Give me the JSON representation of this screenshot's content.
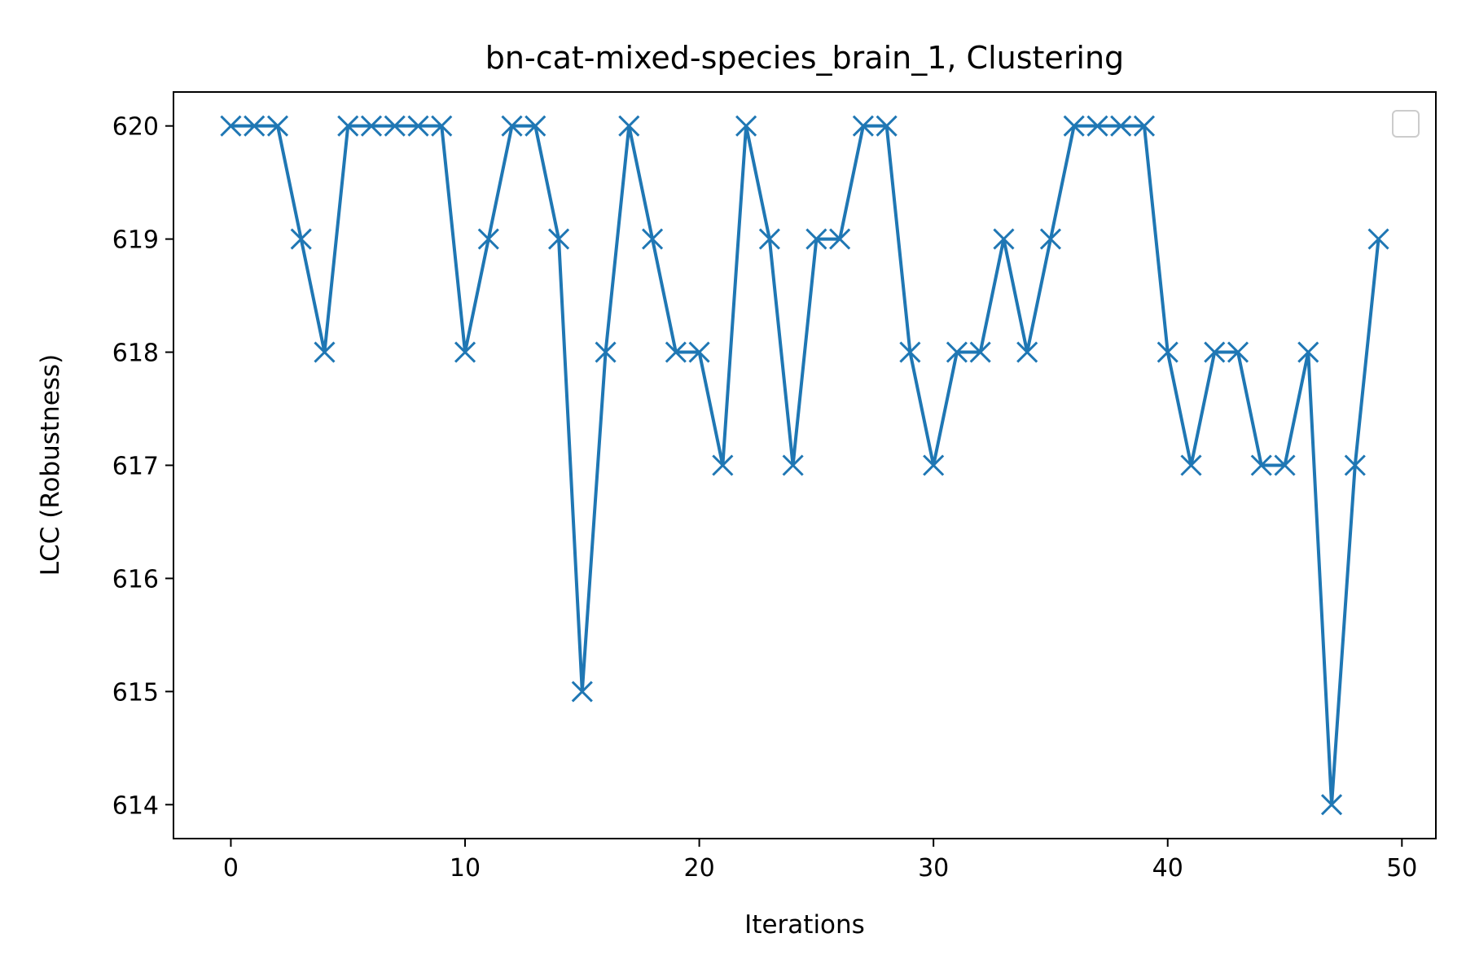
{
  "chart_data": {
    "type": "line",
    "title": "bn-cat-mixed-species_brain_1, Clustering",
    "xlabel": "Iterations",
    "ylabel": "LCC (Robustness)",
    "xlim": [
      -2.45,
      51.45
    ],
    "ylim": [
      613.7,
      620.3
    ],
    "xticks": [
      0,
      10,
      20,
      30,
      40,
      50
    ],
    "yticks": [
      614,
      615,
      616,
      617,
      618,
      619,
      620
    ],
    "grid": false,
    "legend": "upper right (empty)",
    "marker": "x",
    "color": "#1f77b4",
    "series": [
      {
        "x": [
          0,
          1,
          2,
          3,
          4,
          5,
          6,
          7,
          8,
          9,
          10,
          11,
          12,
          13,
          14,
          15,
          16,
          17,
          18,
          19,
          20,
          21,
          22,
          23,
          24,
          25,
          26,
          27,
          28,
          29,
          30,
          31,
          32,
          33,
          34,
          35,
          36,
          37,
          38,
          39,
          40,
          41,
          42,
          43,
          44,
          45,
          46,
          47,
          48,
          49
        ],
        "values": [
          620,
          620,
          620,
          619,
          618,
          620,
          620,
          620,
          620,
          620,
          618,
          619,
          620,
          620,
          619,
          615,
          618,
          620,
          619,
          618,
          618,
          617,
          620,
          619,
          617,
          619,
          619,
          620,
          620,
          618,
          617,
          618,
          618,
          619,
          618,
          619,
          620,
          620,
          620,
          620,
          618,
          617,
          618,
          618,
          617,
          617,
          618,
          614,
          617,
          619
        ]
      }
    ]
  }
}
